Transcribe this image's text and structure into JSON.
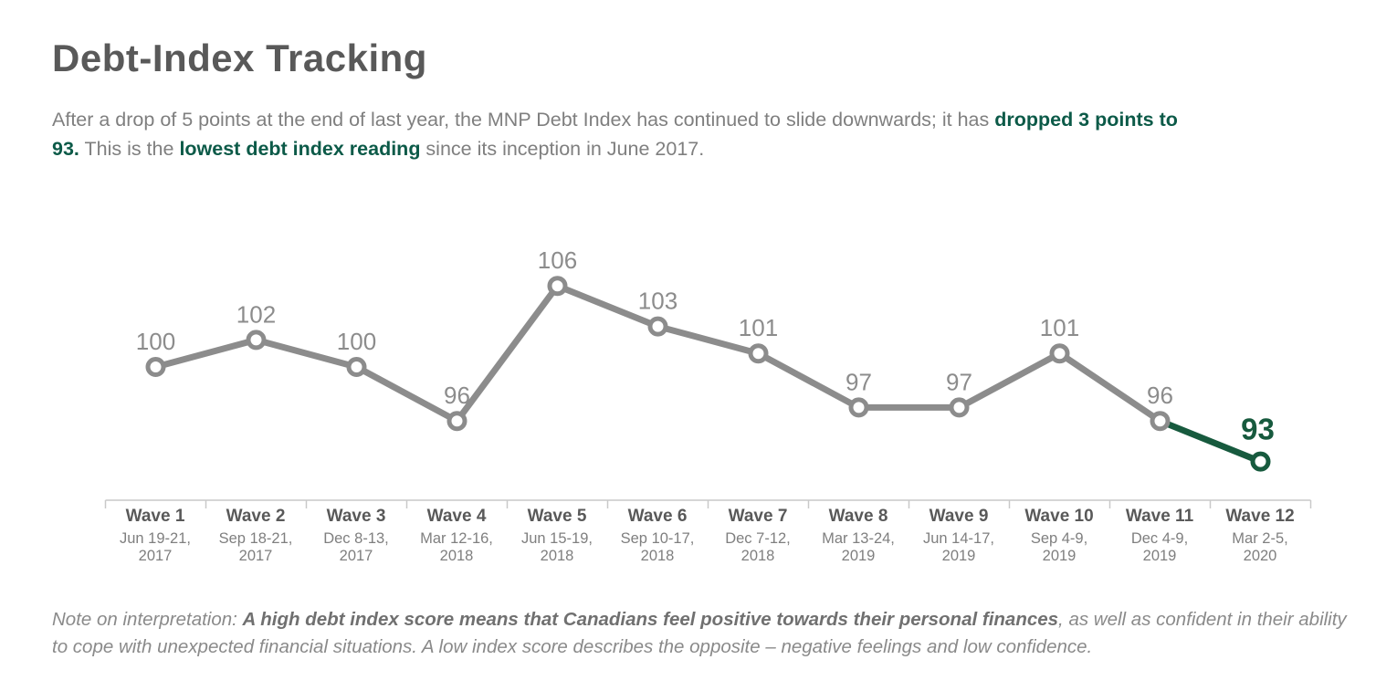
{
  "page": {
    "title": "Debt-Index Tracking"
  },
  "subtitle": {
    "seg1": "After a drop of 5 points at the end of last year, the MNP Debt Index has continued to slide downwards; it has ",
    "seg2_bold": "dropped 3 points to",
    "seg3_bold": "93.",
    "seg4": " This is the ",
    "seg5_bold": "lowest debt index reading",
    "seg6": " since its inception in June 2017."
  },
  "note": {
    "seg1": "Note on interpretation: ",
    "seg2_bold": "A high debt index score means that Canadians feel positive towards their personal finances",
    "seg3": ", as well as confident in their ability",
    "seg4": "to cope with unexpected financial situations. A low index score describes the opposite – negative feelings and low confidence."
  },
  "colors": {
    "title": "#595959",
    "body_text": "#7F7F7F",
    "accent_text": "#0C5A48",
    "chart_line": "#8C8C8C",
    "chart_highlight": "#175A3E",
    "axis": "#C9C9C9",
    "note_text": "#8A8A8A"
  },
  "chart_data": {
    "type": "line",
    "title": "Debt-Index Tracking",
    "categories": [
      "Wave 1",
      "Wave 2",
      "Wave 3",
      "Wave 4",
      "Wave 5",
      "Wave 6",
      "Wave 7",
      "Wave 8",
      "Wave 9",
      "Wave 10",
      "Wave 11",
      "Wave 12"
    ],
    "category_dates": [
      "Jun 19-21, 2017",
      "Sep 18-21, 2017",
      "Dec 8-13, 2017",
      "Mar 12-16, 2018",
      "Jun 15-19, 2018",
      "Sep 10-17, 2018",
      "Dec 7-12, 2018",
      "Mar 13-24, 2019",
      "Jun 14-17, 2019",
      "Sep 4-9, 2019",
      "Dec 4-9, 2019",
      "Mar 2-5, 2020"
    ],
    "values": [
      100,
      102,
      100,
      96,
      106,
      103,
      101,
      97,
      97,
      101,
      96,
      93
    ],
    "highlighted_category": "Wave 12",
    "highlighted_value": 93,
    "line_color": "#8C8C8C",
    "highlight_color": "#175A3E",
    "marker_style": "open-circle",
    "data_labels_shown": true,
    "y_axis_shown": false,
    "gridlines": false,
    "legend": "none",
    "ylim_estimate": [
      88,
      110
    ]
  }
}
